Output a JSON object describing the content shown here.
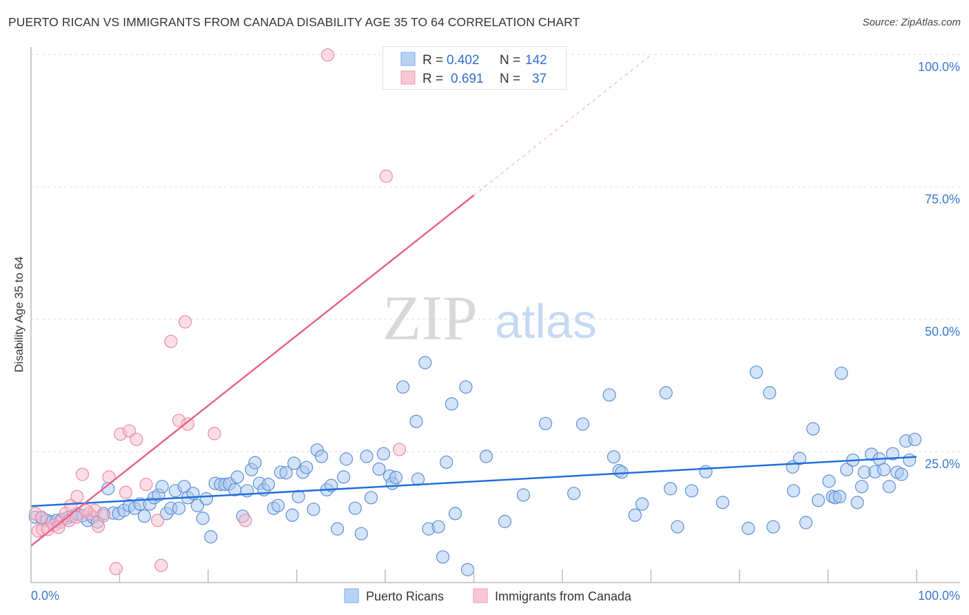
{
  "title": "PUERTO RICAN VS IMMIGRANTS FROM CANADA DISABILITY AGE 35 TO 64 CORRELATION CHART",
  "source": "Source: ZipAtlas.com",
  "watermark": {
    "zip": "ZIP",
    "atlas": "atlas"
  },
  "chart_data": {
    "type": "scatter",
    "title": "PUERTO RICAN VS IMMIGRANTS FROM CANADA DISABILITY AGE 35 TO 64 CORRELATION CHART",
    "xlabel": "",
    "ylabel": "Disability Age 35 to 64",
    "xlim": [
      0,
      100
    ],
    "ylim": [
      0,
      100
    ],
    "x_tick_labels": [
      "0.0%",
      "100.0%"
    ],
    "y_ticks": [
      25,
      50,
      75,
      100
    ],
    "y_tick_labels": [
      "25.0%",
      "50.0%",
      "75.0%",
      "100.0%"
    ],
    "grid": true,
    "legend_placement": "top-center",
    "stats": [
      {
        "r_label": "R =",
        "r": "0.402",
        "n_label": "N =",
        "n": "142"
      },
      {
        "r_label": "R =",
        "r": "0.691",
        "n_label": "N =",
        "n": "37"
      }
    ],
    "series": [
      {
        "name": "Puerto Ricans",
        "color": "#5b8fd6",
        "fill": "#a9c8f0",
        "line_color": "#1f6fd8",
        "trend": {
          "x0": 0,
          "y0": 14.7,
          "x1": 100,
          "y1": 24.0
        },
        "points": [
          [
            0.5,
            12.6
          ],
          [
            1.2,
            12.4
          ],
          [
            1.8,
            12.0
          ],
          [
            2.3,
            11.7
          ],
          [
            2.9,
            12.0
          ],
          [
            3.5,
            12.2
          ],
          [
            4.1,
            12.5
          ],
          [
            4.7,
            12.8
          ],
          [
            5.2,
            13.2
          ],
          [
            5.8,
            12.9
          ],
          [
            6.4,
            12.0
          ],
          [
            7.0,
            12.6
          ],
          [
            7.5,
            11.7
          ],
          [
            8.2,
            13.3
          ],
          [
            8.7,
            18.0
          ],
          [
            9.3,
            13.4
          ],
          [
            9.9,
            13.3
          ],
          [
            10.5,
            13.9
          ],
          [
            11.1,
            14.8
          ],
          [
            11.7,
            14.3
          ],
          [
            12.3,
            15.1
          ],
          [
            12.8,
            12.8
          ],
          [
            13.4,
            15.1
          ],
          [
            13.9,
            16.3
          ],
          [
            14.4,
            16.8
          ],
          [
            14.8,
            18.4
          ],
          [
            15.3,
            13.3
          ],
          [
            15.8,
            14.3
          ],
          [
            16.3,
            17.6
          ],
          [
            16.7,
            14.3
          ],
          [
            17.3,
            18.4
          ],
          [
            17.7,
            16.3
          ],
          [
            18.3,
            17.1
          ],
          [
            18.8,
            14.8
          ],
          [
            19.4,
            12.4
          ],
          [
            19.8,
            16.1
          ],
          [
            20.3,
            8.9
          ],
          [
            20.8,
            19.0
          ],
          [
            21.4,
            18.8
          ],
          [
            21.9,
            18.8
          ],
          [
            22.4,
            18.9
          ],
          [
            23.0,
            17.8
          ],
          [
            23.3,
            20.2
          ],
          [
            23.9,
            12.8
          ],
          [
            24.4,
            17.6
          ],
          [
            24.9,
            21.6
          ],
          [
            25.3,
            22.9
          ],
          [
            25.8,
            19.0
          ],
          [
            26.3,
            17.8
          ],
          [
            26.8,
            18.8
          ],
          [
            27.4,
            14.3
          ],
          [
            27.9,
            14.8
          ],
          [
            28.2,
            21.1
          ],
          [
            28.8,
            21.0
          ],
          [
            29.5,
            13.0
          ],
          [
            29.7,
            22.8
          ],
          [
            30.2,
            16.5
          ],
          [
            30.7,
            21.1
          ],
          [
            31.1,
            22.0
          ],
          [
            31.9,
            14.1
          ],
          [
            32.3,
            25.3
          ],
          [
            32.8,
            24.1
          ],
          [
            33.4,
            17.8
          ],
          [
            33.9,
            18.6
          ],
          [
            34.6,
            10.4
          ],
          [
            35.3,
            20.2
          ],
          [
            35.6,
            23.6
          ],
          [
            36.6,
            14.3
          ],
          [
            37.3,
            9.5
          ],
          [
            37.9,
            24.1
          ],
          [
            38.4,
            16.3
          ],
          [
            39.3,
            21.7
          ],
          [
            39.8,
            24.6
          ],
          [
            40.5,
            20.4
          ],
          [
            40.8,
            19.0
          ],
          [
            41.2,
            20.1
          ],
          [
            42.0,
            37.2
          ],
          [
            43.5,
            30.7
          ],
          [
            43.7,
            19.8
          ],
          [
            44.5,
            41.8
          ],
          [
            44.9,
            10.4
          ],
          [
            46.0,
            10.8
          ],
          [
            46.5,
            5.1
          ],
          [
            46.9,
            23.0
          ],
          [
            47.5,
            34.0
          ],
          [
            47.9,
            13.3
          ],
          [
            49.1,
            37.2
          ],
          [
            49.3,
            2.7
          ],
          [
            51.4,
            24.1
          ],
          [
            53.5,
            11.8
          ],
          [
            55.6,
            16.8
          ],
          [
            58.1,
            30.3
          ],
          [
            61.3,
            17.1
          ],
          [
            62.3,
            30.2
          ],
          [
            65.3,
            35.7
          ],
          [
            65.8,
            24.0
          ],
          [
            66.4,
            21.4
          ],
          [
            66.7,
            21.1
          ],
          [
            68.2,
            13.0
          ],
          [
            69.0,
            15.1
          ],
          [
            71.7,
            36.1
          ],
          [
            72.2,
            18.0
          ],
          [
            73.0,
            10.8
          ],
          [
            74.6,
            17.6
          ],
          [
            76.2,
            21.2
          ],
          [
            78.1,
            15.4
          ],
          [
            81.0,
            10.5
          ],
          [
            81.9,
            40.0
          ],
          [
            83.4,
            36.1
          ],
          [
            83.8,
            10.8
          ],
          [
            86.0,
            22.1
          ],
          [
            86.1,
            17.6
          ],
          [
            86.8,
            23.7
          ],
          [
            87.5,
            11.6
          ],
          [
            88.3,
            29.3
          ],
          [
            88.9,
            15.8
          ],
          [
            90.1,
            19.4
          ],
          [
            90.5,
            16.5
          ],
          [
            90.8,
            16.3
          ],
          [
            91.3,
            16.5
          ],
          [
            91.5,
            39.8
          ],
          [
            92.1,
            21.6
          ],
          [
            92.8,
            23.4
          ],
          [
            93.3,
            15.4
          ],
          [
            93.8,
            18.4
          ],
          [
            94.1,
            21.1
          ],
          [
            94.9,
            24.5
          ],
          [
            95.3,
            21.2
          ],
          [
            95.8,
            23.6
          ],
          [
            96.3,
            21.6
          ],
          [
            96.9,
            18.4
          ],
          [
            97.3,
            24.6
          ],
          [
            97.8,
            21.1
          ],
          [
            98.3,
            20.7
          ],
          [
            98.8,
            27.0
          ],
          [
            99.2,
            23.4
          ],
          [
            99.8,
            27.3
          ]
        ]
      },
      {
        "name": "Immigrants from Canada",
        "color": "#e88aa5",
        "fill": "#f7bccb",
        "line_color": "#e8608a",
        "trend": {
          "x0": 0,
          "y0": 7.2,
          "x1": 50,
          "y1": 73.4,
          "dashed_to_x": 70
        },
        "points": [
          [
            0.5,
            13.3
          ],
          [
            0.8,
            10.0
          ],
          [
            1.3,
            10.3
          ],
          [
            1.9,
            10.3
          ],
          [
            2.6,
            11.1
          ],
          [
            3.3,
            11.7
          ],
          [
            3.9,
            13.3
          ],
          [
            4.5,
            14.8
          ],
          [
            5.2,
            16.5
          ],
          [
            5.8,
            20.7
          ],
          [
            6.6,
            13.3
          ],
          [
            7.2,
            13.9
          ],
          [
            7.6,
            10.9
          ],
          [
            8.2,
            12.9
          ],
          [
            8.8,
            20.2
          ],
          [
            9.6,
            2.9
          ],
          [
            10.1,
            28.3
          ],
          [
            10.7,
            17.3
          ],
          [
            11.1,
            28.9
          ],
          [
            11.9,
            27.3
          ],
          [
            13.0,
            18.8
          ],
          [
            14.3,
            12.0
          ],
          [
            14.7,
            3.5
          ],
          [
            15.8,
            45.8
          ],
          [
            16.7,
            30.9
          ],
          [
            17.4,
            49.5
          ],
          [
            17.7,
            30.2
          ],
          [
            20.7,
            28.4
          ],
          [
            24.2,
            12.0
          ],
          [
            33.5,
            99.9
          ],
          [
            40.1,
            77.0
          ],
          [
            41.6,
            25.4
          ],
          [
            4.3,
            12.0
          ],
          [
            5.1,
            12.6
          ],
          [
            6.2,
            13.9
          ],
          [
            1.2,
            12.6
          ],
          [
            3.1,
            10.7
          ]
        ]
      }
    ]
  }
}
